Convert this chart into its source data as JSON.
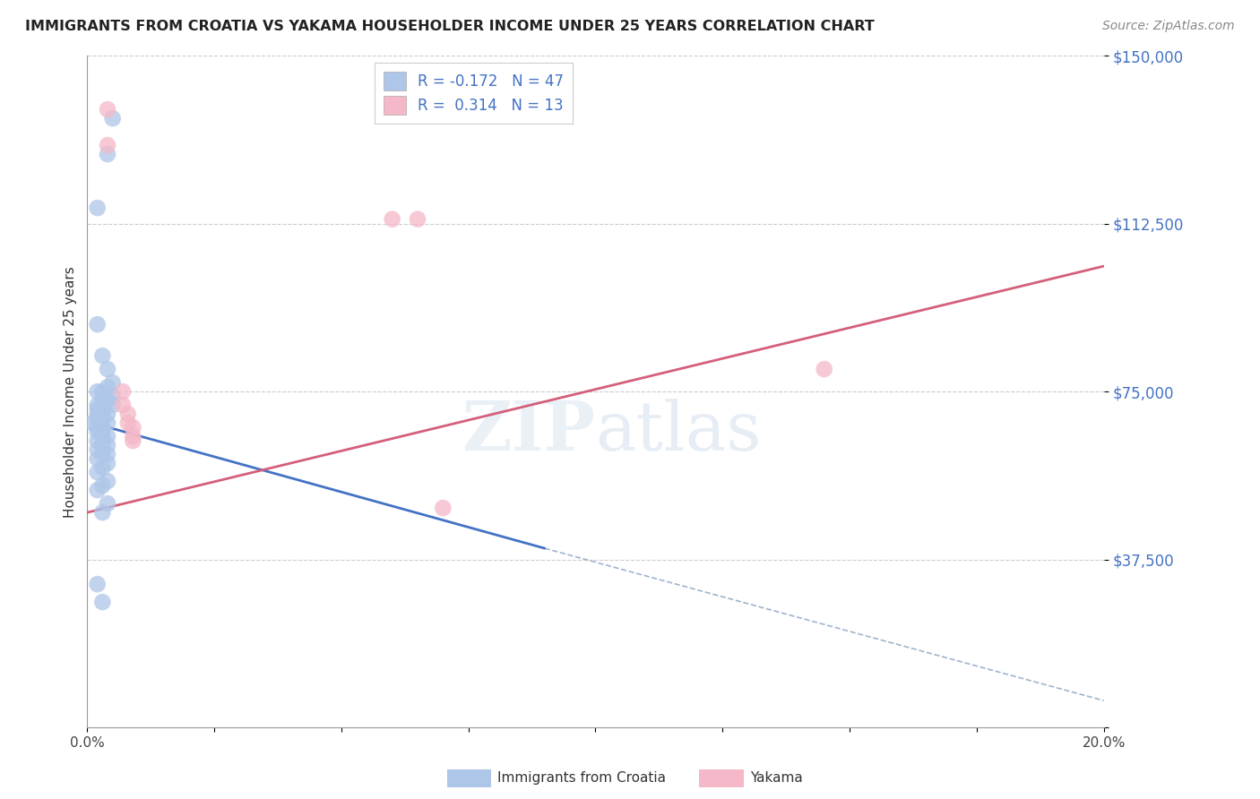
{
  "title": "IMMIGRANTS FROM CROATIA VS YAKAMA HOUSEHOLDER INCOME UNDER 25 YEARS CORRELATION CHART",
  "source": "Source: ZipAtlas.com",
  "ylabel": "Householder Income Under 25 years",
  "xlim": [
    0.0,
    0.2
  ],
  "ylim": [
    0,
    150000
  ],
  "yticks": [
    0,
    37500,
    75000,
    112500,
    150000
  ],
  "ytick_labels": [
    "",
    "$37,500",
    "$75,000",
    "$112,500",
    "$150,000"
  ],
  "xticks": [
    0.0,
    0.025,
    0.05,
    0.075,
    0.1,
    0.125,
    0.15,
    0.175,
    0.2
  ],
  "xtick_labels": [
    "0.0%",
    "",
    "",
    "",
    "",
    "",
    "",
    "",
    "20.0%"
  ],
  "legend_entry_1": "R = -0.172   N = 47",
  "legend_entry_2": "R =  0.314   N = 13",
  "croatia_color": "#aec6e8",
  "yakama_color": "#f4b8c8",
  "croatia_line_color": "#4472c4",
  "yakama_line_color": "#d45f7a",
  "trendline_dashed_color": "#a0b4cc",
  "croatia_points": [
    [
      0.002,
      116000
    ],
    [
      0.005,
      136000
    ],
    [
      0.004,
      128000
    ],
    [
      0.002,
      90000
    ],
    [
      0.003,
      83000
    ],
    [
      0.004,
      80000
    ],
    [
      0.005,
      77000
    ],
    [
      0.004,
      76000
    ],
    [
      0.003,
      75000
    ],
    [
      0.002,
      75000
    ],
    [
      0.005,
      74000
    ],
    [
      0.004,
      73000
    ],
    [
      0.003,
      73000
    ],
    [
      0.002,
      72000
    ],
    [
      0.005,
      72000
    ],
    [
      0.003,
      71000
    ],
    [
      0.002,
      71000
    ],
    [
      0.004,
      70000
    ],
    [
      0.003,
      70000
    ],
    [
      0.002,
      70000
    ],
    [
      0.003,
      69000
    ],
    [
      0.002,
      69000
    ],
    [
      0.001,
      68000
    ],
    [
      0.004,
      68000
    ],
    [
      0.003,
      67000
    ],
    [
      0.002,
      67000
    ],
    [
      0.003,
      66000
    ],
    [
      0.002,
      66000
    ],
    [
      0.004,
      65000
    ],
    [
      0.003,
      65000
    ],
    [
      0.002,
      64000
    ],
    [
      0.004,
      63000
    ],
    [
      0.003,
      63000
    ],
    [
      0.002,
      62000
    ],
    [
      0.004,
      61000
    ],
    [
      0.003,
      61000
    ],
    [
      0.002,
      60000
    ],
    [
      0.004,
      59000
    ],
    [
      0.003,
      58000
    ],
    [
      0.002,
      57000
    ],
    [
      0.004,
      55000
    ],
    [
      0.003,
      54000
    ],
    [
      0.002,
      53000
    ],
    [
      0.004,
      50000
    ],
    [
      0.003,
      48000
    ],
    [
      0.002,
      32000
    ],
    [
      0.003,
      28000
    ]
  ],
  "yakama_points": [
    [
      0.004,
      138000
    ],
    [
      0.004,
      130000
    ],
    [
      0.007,
      75000
    ],
    [
      0.007,
      72000
    ],
    [
      0.008,
      70000
    ],
    [
      0.008,
      68000
    ],
    [
      0.009,
      67000
    ],
    [
      0.009,
      65000
    ],
    [
      0.009,
      64000
    ],
    [
      0.06,
      113500
    ],
    [
      0.065,
      113500
    ],
    [
      0.07,
      49000
    ],
    [
      0.145,
      80000
    ]
  ],
  "croatia_line_x0": 0.001,
  "croatia_line_y0": 68000,
  "croatia_line_x1": 0.09,
  "croatia_line_y1": 40000,
  "yakama_line_x0": 0.0,
  "yakama_line_y0": 48000,
  "yakama_line_x1": 0.2,
  "yakama_line_y1": 103000,
  "dashed_line_x0": 0.09,
  "dashed_line_y0": 40000,
  "dashed_line_x1": 0.2,
  "dashed_line_y1": 6000
}
